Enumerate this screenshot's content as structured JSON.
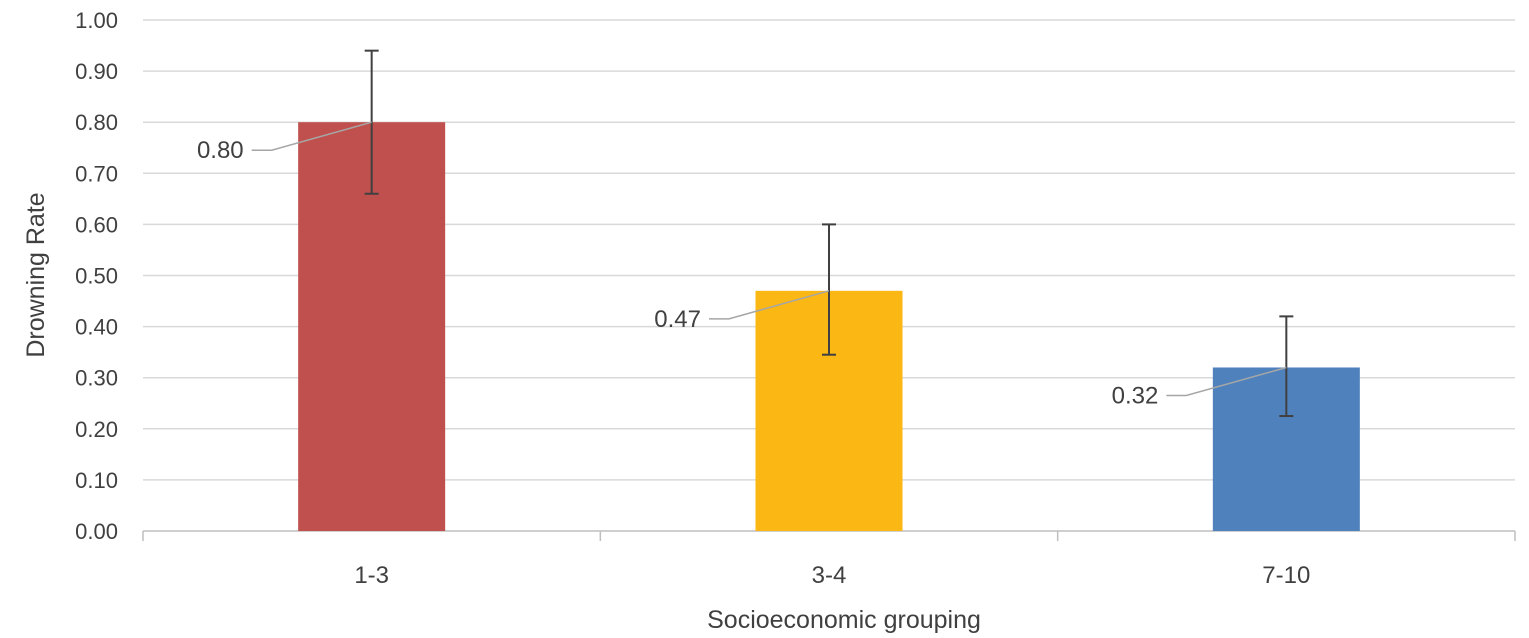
{
  "chart_data": {
    "type": "bar",
    "categories": [
      "1-3",
      "3-4",
      "7-10"
    ],
    "values": [
      0.8,
      0.47,
      0.32
    ],
    "error_bars": [
      {
        "low": 0.66,
        "high": 0.94
      },
      {
        "low": 0.345,
        "high": 0.6
      },
      {
        "low": 0.225,
        "high": 0.42
      }
    ],
    "data_labels": [
      "0.80",
      "0.47",
      "0.32"
    ],
    "bar_colors": [
      "#c0504d",
      "#fbb714",
      "#4f81bd"
    ],
    "xlabel": "Socioeconomic grouping",
    "ylabel": "Drowning Rate",
    "ylim": [
      0,
      1.0
    ],
    "yticks": [
      "0.00",
      "0.10",
      "0.20",
      "0.30",
      "0.40",
      "0.50",
      "0.60",
      "0.70",
      "0.80",
      "0.90",
      "1.00"
    ],
    "grid": true,
    "legend": "none"
  }
}
